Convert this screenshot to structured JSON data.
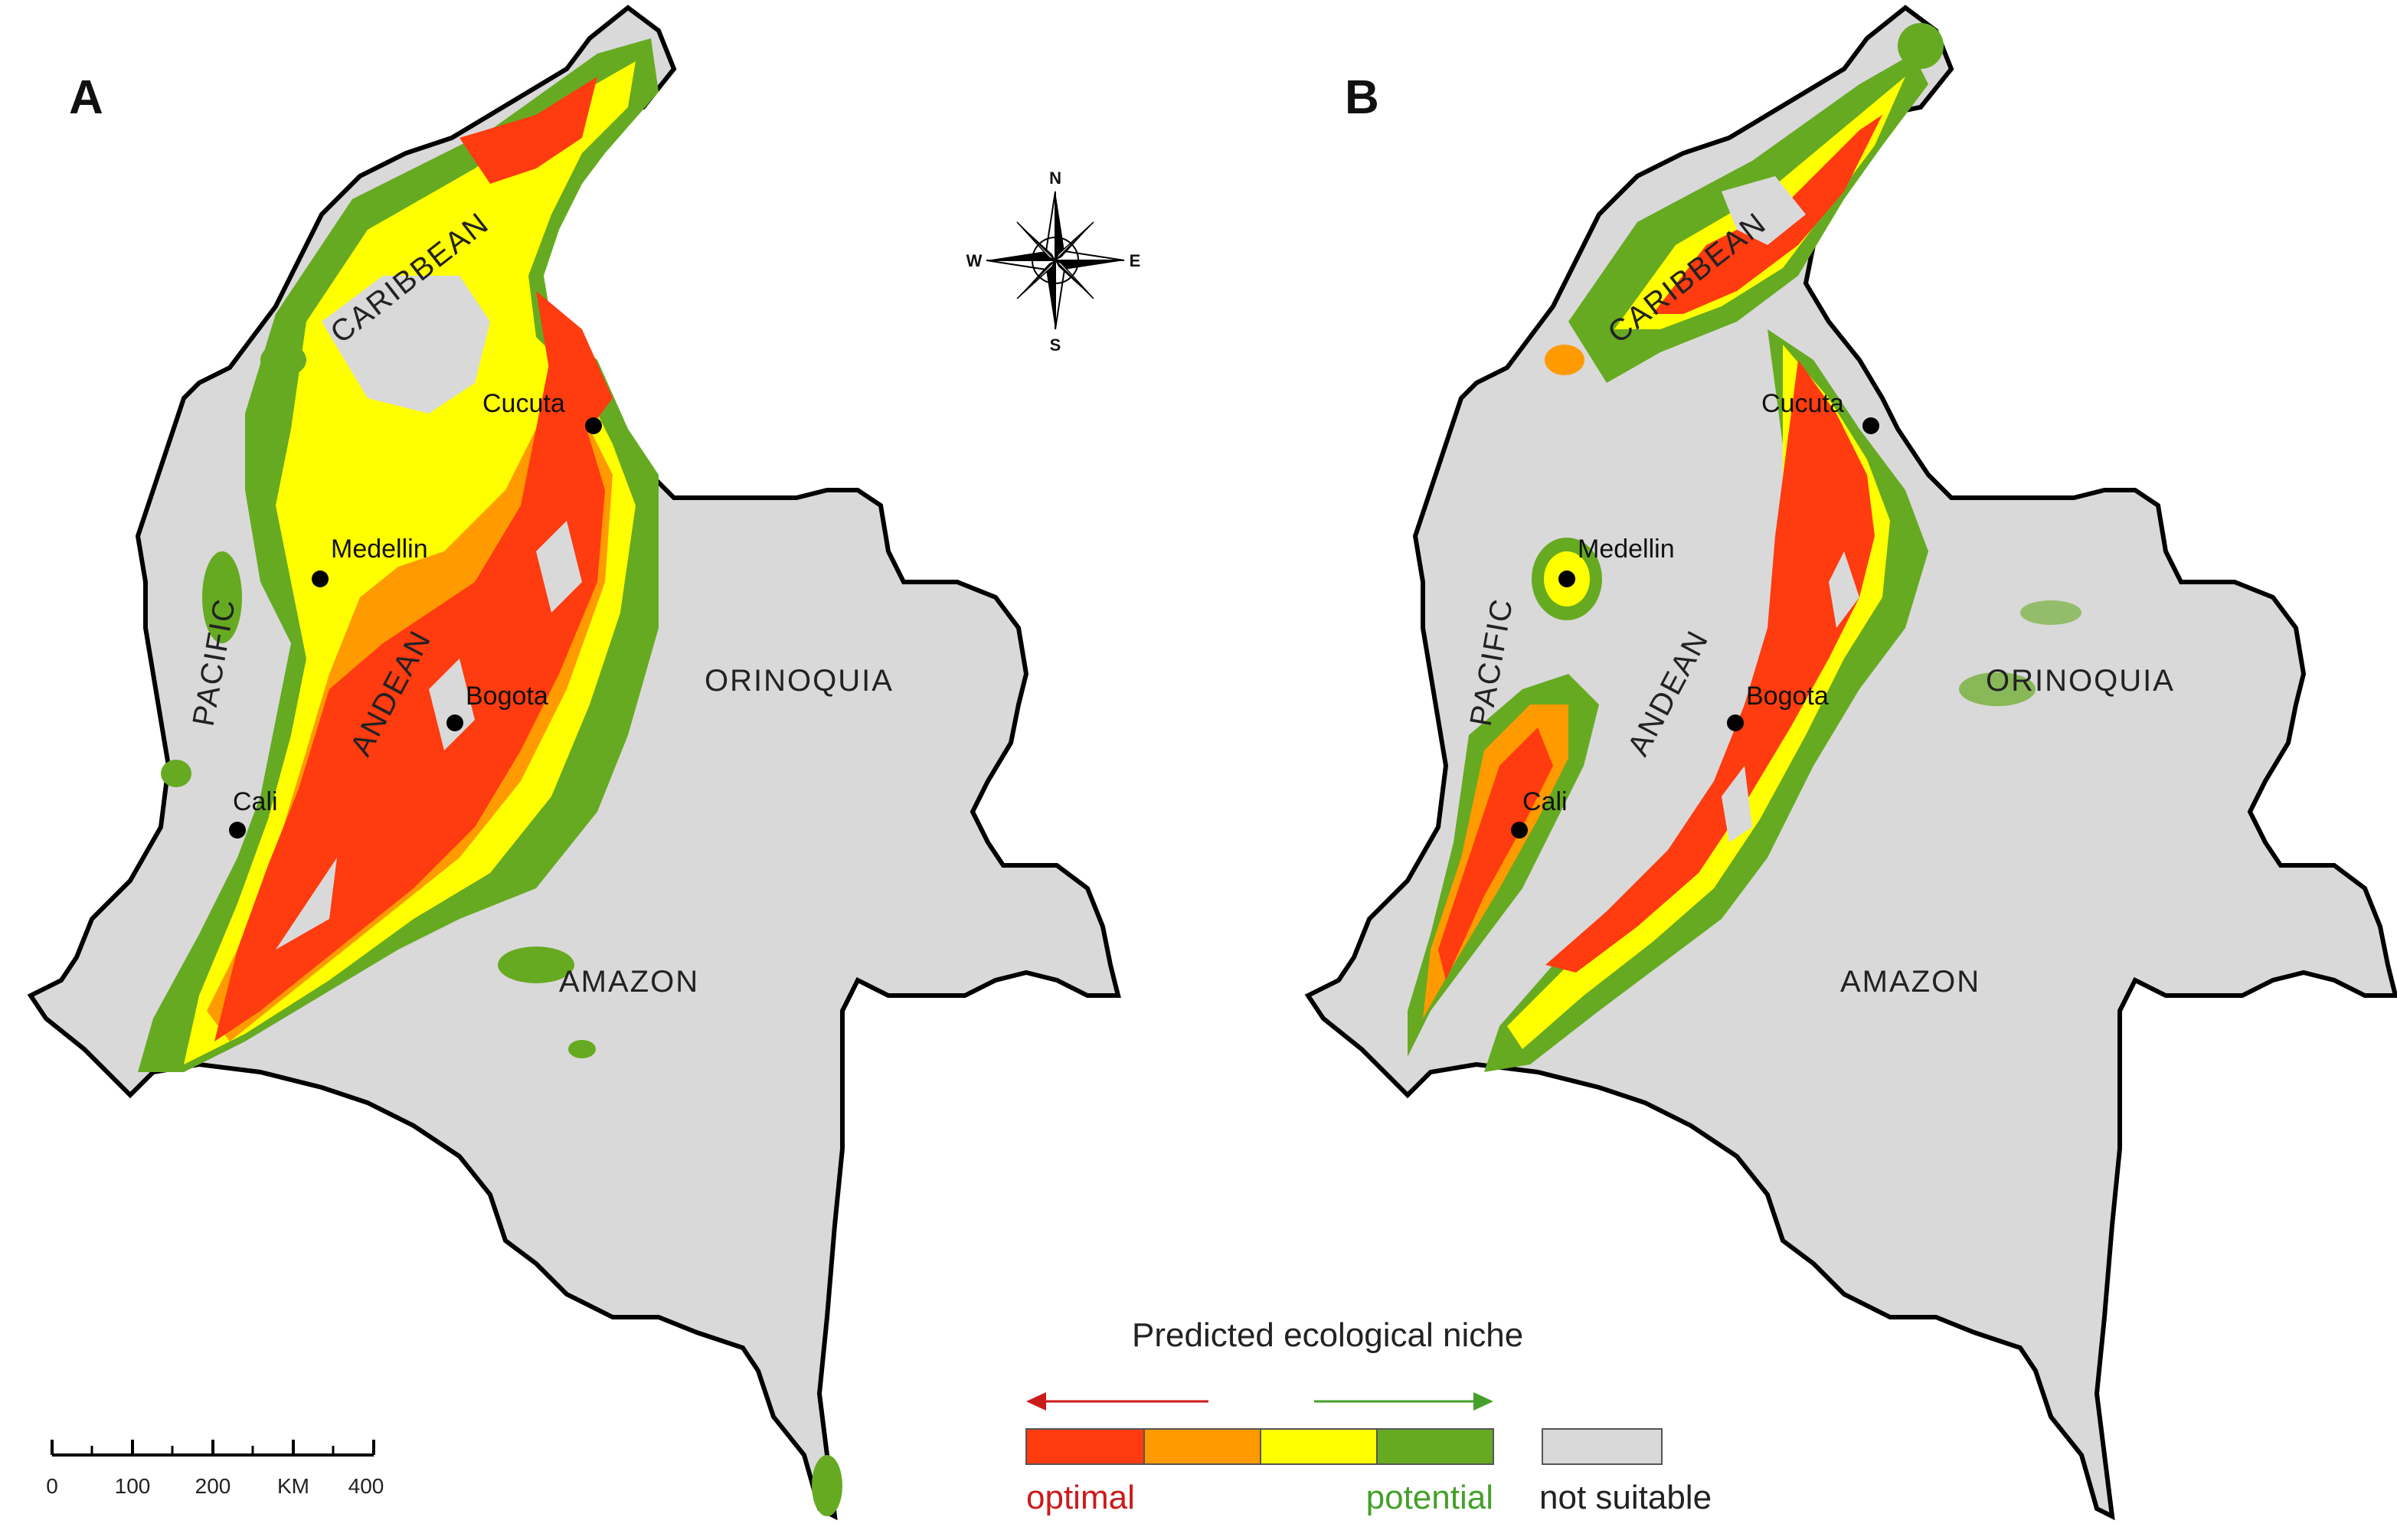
{
  "panels": [
    {
      "letter": "A",
      "regions": {
        "caribbean": "CARIBBEAN",
        "pacific": "PACIFIC",
        "andean": "ANDEAN",
        "orinoquia": "ORINOQUIA",
        "amazon": "AMAZON"
      },
      "cities": {
        "cucuta": "Cucuta",
        "medellin": "Medellin",
        "bogota": "Bogota",
        "cali": "Cali"
      }
    },
    {
      "letter": "B",
      "regions": {
        "caribbean": "CARIBBEAN",
        "pacific": "PACIFIC",
        "andean": "ANDEAN",
        "orinoquia": "ORINOQUIA",
        "amazon": "AMAZON"
      },
      "cities": {
        "cucuta": "Cucuta",
        "medellin": "Medellin",
        "bogota": "Bogota",
        "cali": "Cali"
      }
    }
  ],
  "compass": {
    "n": "N",
    "s": "S",
    "e": "E",
    "w": "W"
  },
  "legend": {
    "title": "Predicted ecological niche",
    "optimal": "optimal",
    "potential": "potential",
    "not_suitable": "not suitable",
    "colors": {
      "optimal": "#ff3b10",
      "high": "#ff9a00",
      "medium": "#ffff00",
      "potential": "#66aa22",
      "not_suitable": "#d9d9d9",
      "optimal_text": "#cc1a1a",
      "potential_text": "#44a02a"
    }
  },
  "scale_bar": {
    "ticks": [
      "0",
      "100",
      "200",
      "KM",
      "400"
    ]
  }
}
